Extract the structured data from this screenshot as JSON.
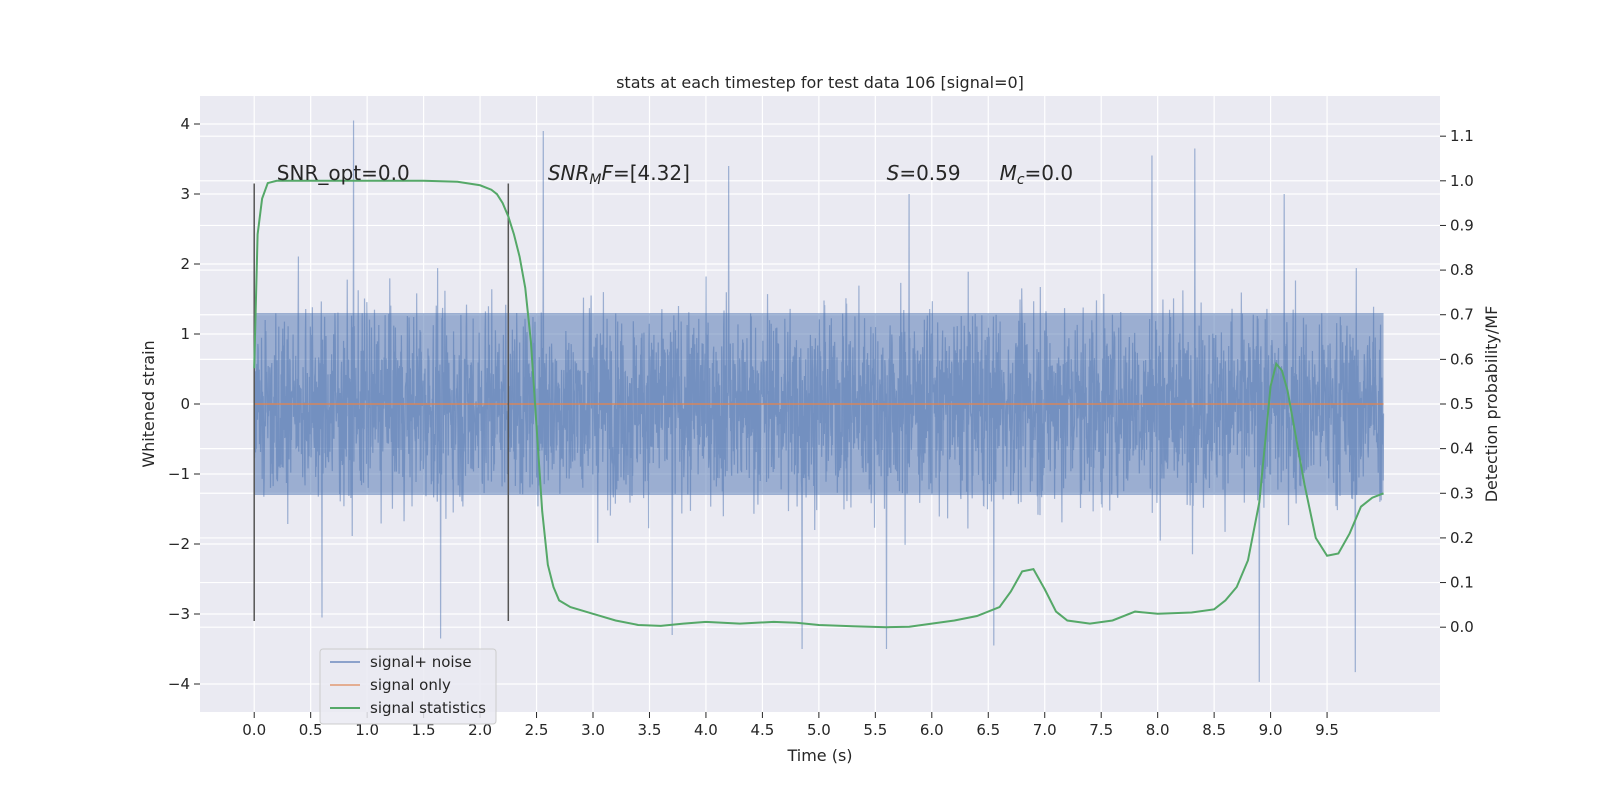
{
  "chart_data": {
    "type": "line",
    "title": "stats at each timestep for test data 106 [signal=0]",
    "xlabel": "Time (s)",
    "ylabel": "Whitened strain",
    "y2label": "Detection probability/MF",
    "xlim": [
      -0.48,
      10.5
    ],
    "ylim": [
      -4.4,
      4.4
    ],
    "y2lim": [
      -0.19,
      1.19
    ],
    "x_ticks": [
      0.0,
      0.5,
      1.0,
      1.5,
      2.0,
      2.5,
      3.0,
      3.5,
      4.0,
      4.5,
      5.0,
      5.5,
      6.0,
      6.5,
      7.0,
      7.5,
      8.0,
      8.5,
      9.0,
      9.5
    ],
    "x_tick_labels": [
      "0.0",
      "0.5",
      "1.0",
      "1.5",
      "2.0",
      "2.5",
      "3.0",
      "3.5",
      "4.0",
      "4.5",
      "5.0",
      "5.5",
      "6.0",
      "6.5",
      "7.0",
      "7.5",
      "8.0",
      "8.5",
      "9.0",
      "9.5"
    ],
    "y_ticks": [
      -4,
      -3,
      -2,
      -1,
      0,
      1,
      2,
      3,
      4
    ],
    "y_tick_labels": [
      "−4",
      "−3",
      "−2",
      "−1",
      "0",
      "1",
      "2",
      "3",
      "4"
    ],
    "y2_ticks": [
      0.0,
      0.1,
      0.2,
      0.3,
      0.4,
      0.5,
      0.6,
      0.7,
      0.8,
      0.9,
      1.0,
      1.1
    ],
    "y2_tick_labels": [
      "0.0",
      "0.1",
      "0.2",
      "0.3",
      "0.4",
      "0.5",
      "0.6",
      "0.7",
      "0.8",
      "0.9",
      "1.0",
      "1.1"
    ],
    "grid": true,
    "legend_position": "lower-left",
    "vertical_lines": [
      {
        "x": 0.0,
        "ymin": -3.1,
        "ymax": 3.15
      },
      {
        "x": 2.25,
        "ymin": -3.1,
        "ymax": 3.15
      }
    ],
    "annotations": [
      {
        "x": 0.2,
        "y": 3.2,
        "text": "SNR_opt=0.0"
      },
      {
        "x": 2.6,
        "y": 3.2,
        "text": "SNR_M F=[4.32]",
        "main": "SNR",
        "sub": "M",
        "rest": "F=[4.32]"
      },
      {
        "x": 5.6,
        "y": 3.2,
        "text": "S=0.59",
        "main": "S",
        "rest": "=0.59"
      },
      {
        "x": 6.6,
        "y": 3.2,
        "text": "M_c=0.0",
        "main": "M",
        "sub": "c",
        "rest": "=0.0"
      }
    ],
    "series": [
      {
        "name": "signal+ noise",
        "color": "#4c72b0",
        "style": "noise-band",
        "x_range": [
          0.0,
          10.0
        ],
        "band": [
          -1.3,
          1.3
        ],
        "amplitude_max": 4.05,
        "amplitude_min": -3.97,
        "peaks": [
          {
            "x": 0.88,
            "y": 4.05
          },
          {
            "x": 2.56,
            "y": 3.9
          },
          {
            "x": 8.33,
            "y": 3.65
          },
          {
            "x": 7.95,
            "y": 3.55
          },
          {
            "x": 4.2,
            "y": 3.4
          },
          {
            "x": 5.8,
            "y": 3.0
          },
          {
            "x": 9.12,
            "y": 3.0
          },
          {
            "x": 1.65,
            "y": -3.35
          },
          {
            "x": 3.7,
            "y": -3.3
          },
          {
            "x": 4.85,
            "y": -3.5
          },
          {
            "x": 5.6,
            "y": -3.5
          },
          {
            "x": 6.55,
            "y": -3.45
          },
          {
            "x": 8.9,
            "y": -3.97
          },
          {
            "x": 9.75,
            "y": -3.83
          },
          {
            "x": 0.6,
            "y": -3.05
          }
        ]
      },
      {
        "name": "signal only",
        "color": "#dd8452",
        "x": [
          0.0,
          10.0
        ],
        "y": [
          0.0,
          0.0
        ]
      },
      {
        "name": "signal statistics",
        "color": "#55a868",
        "axis": "right",
        "x": [
          0.0,
          0.03,
          0.07,
          0.12,
          0.2,
          0.3,
          0.5,
          1.0,
          1.5,
          1.8,
          2.0,
          2.1,
          2.15,
          2.2,
          2.25,
          2.3,
          2.35,
          2.4,
          2.45,
          2.5,
          2.55,
          2.6,
          2.65,
          2.7,
          2.8,
          3.0,
          3.2,
          3.4,
          3.6,
          3.8,
          4.0,
          4.3,
          4.6,
          4.8,
          5.0,
          5.3,
          5.6,
          5.8,
          6.0,
          6.2,
          6.4,
          6.6,
          6.7,
          6.8,
          6.9,
          7.0,
          7.1,
          7.2,
          7.4,
          7.6,
          7.8,
          8.0,
          8.3,
          8.5,
          8.6,
          8.7,
          8.8,
          8.9,
          9.0,
          9.05,
          9.1,
          9.15,
          9.2,
          9.3,
          9.4,
          9.5,
          9.6,
          9.7,
          9.8,
          9.9,
          10.0
        ],
        "y": [
          0.58,
          0.88,
          0.96,
          0.995,
          1.0,
          1.0,
          1.0,
          1.0,
          1.0,
          0.998,
          0.99,
          0.98,
          0.97,
          0.95,
          0.92,
          0.88,
          0.83,
          0.76,
          0.64,
          0.45,
          0.26,
          0.14,
          0.09,
          0.06,
          0.045,
          0.03,
          0.015,
          0.005,
          0.003,
          0.008,
          0.012,
          0.008,
          0.012,
          0.01,
          0.005,
          0.002,
          0.0,
          0.001,
          0.008,
          0.015,
          0.025,
          0.045,
          0.08,
          0.125,
          0.13,
          0.085,
          0.035,
          0.015,
          0.008,
          0.015,
          0.035,
          0.03,
          0.033,
          0.04,
          0.06,
          0.09,
          0.15,
          0.28,
          0.54,
          0.59,
          0.575,
          0.53,
          0.46,
          0.32,
          0.2,
          0.16,
          0.165,
          0.21,
          0.27,
          0.29,
          0.3
        ]
      }
    ]
  }
}
